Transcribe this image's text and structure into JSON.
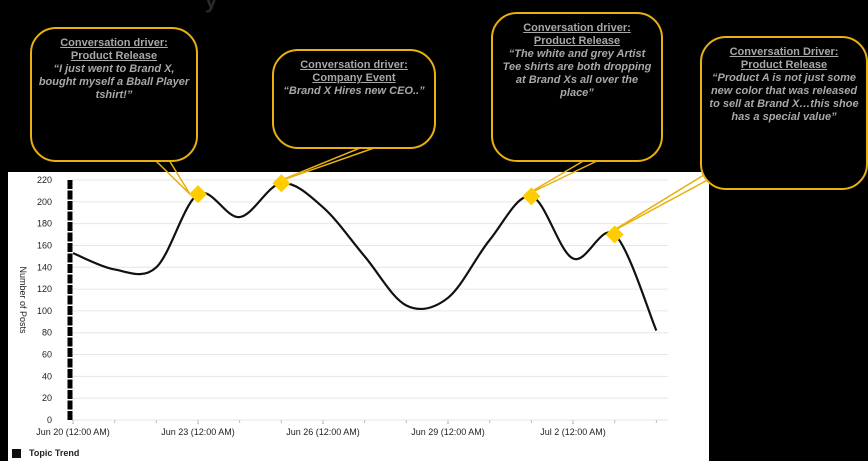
{
  "page": {
    "title_fragment": "y"
  },
  "chart_data": {
    "type": "line",
    "ylabel": "Number of Posts",
    "ylim": [
      0,
      220
    ],
    "yticks": [
      0,
      20,
      40,
      60,
      80,
      100,
      120,
      140,
      160,
      180,
      200,
      220
    ],
    "xticks": [
      "Jun 20 (12:00 AM)",
      "Jun 23 (12:00 AM)",
      "Jun 26 (12:00 AM)",
      "Jun 29 (12:00 AM)",
      "Jul 2 (12:00 AM)"
    ],
    "series": [
      {
        "name": "Topic Trend",
        "color": "#111111",
        "points": [
          {
            "d": 0,
            "v": 153
          },
          {
            "d": 1,
            "v": 138
          },
          {
            "d": 2,
            "v": 140
          },
          {
            "d": 3,
            "v": 207
          },
          {
            "d": 4,
            "v": 186
          },
          {
            "d": 5,
            "v": 217
          },
          {
            "d": 6,
            "v": 195
          },
          {
            "d": 7,
            "v": 150
          },
          {
            "d": 8,
            "v": 105
          },
          {
            "d": 9,
            "v": 112
          },
          {
            "d": 10,
            "v": 165
          },
          {
            "d": 11,
            "v": 205
          },
          {
            "d": 12,
            "v": 148
          },
          {
            "d": 13,
            "v": 170
          },
          {
            "d": 14,
            "v": 82
          }
        ]
      }
    ],
    "highlights": [
      {
        "d": 3,
        "v": 207,
        "callout": 0
      },
      {
        "d": 5,
        "v": 217,
        "callout": 1
      },
      {
        "d": 11,
        "v": 205,
        "callout": 2
      },
      {
        "d": 13,
        "v": 170,
        "callout": 3
      }
    ],
    "highlight_color": "#ffcc00",
    "callout_border_color": "#e8b10f"
  },
  "callouts": [
    {
      "heading": "Conversation driver:",
      "topic": "Product Release",
      "quote": "“I just went to Brand X, bought myself a Bball Player tshirt!”"
    },
    {
      "heading": "Conversation driver:",
      "topic": "Company Event",
      "quote": "“Brand X Hires new CEO..”"
    },
    {
      "heading": "Conversation driver:",
      "topic": "Product Release",
      "quote": "“The white and grey Artist Tee shirts are both dropping at Brand Xs all over the place”"
    },
    {
      "heading": "Conversation Driver:",
      "topic": "Product Release",
      "quote": "“Product A is not just some new color that was released to sell at Brand X…this shoe has a special value”"
    }
  ]
}
